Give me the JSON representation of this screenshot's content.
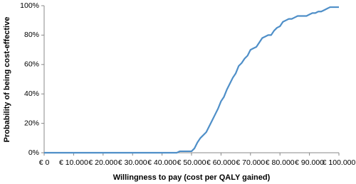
{
  "chart_data": {
    "type": "line",
    "x_label": "Willingness to pay (cost per QALY gained)",
    "y_label": "Probability of being cost-effective",
    "x": [
      0,
      45000,
      46000,
      50000,
      51000,
      52000,
      53000,
      54000,
      55000,
      56000,
      57000,
      58000,
      59000,
      60000,
      61000,
      62000,
      63000,
      64000,
      65000,
      66000,
      67000,
      68000,
      69000,
      70000,
      71000,
      72000,
      73000,
      74000,
      75000,
      76000,
      77000,
      78000,
      79000,
      80000,
      81000,
      82000,
      83000,
      84000,
      85000,
      86000,
      87000,
      88000,
      89000,
      90000,
      91000,
      92000,
      93000,
      94000,
      95000,
      96000,
      97000,
      98000,
      99000,
      100000
    ],
    "values": [
      0,
      0,
      1,
      1,
      3,
      7,
      10,
      12,
      14,
      18,
      22,
      26,
      30,
      35,
      38,
      43,
      47,
      51,
      54,
      59,
      61,
      64,
      66,
      70,
      71,
      72,
      75,
      78,
      79,
      80,
      80,
      83,
      85,
      86,
      89,
      90,
      91,
      91,
      92,
      93,
      93,
      93,
      93,
      94,
      95,
      95,
      96,
      96,
      97,
      98,
      99,
      99,
      99,
      99
    ],
    "color": "#4f8fc8",
    "xlim": [
      0,
      100000
    ],
    "xticks": [
      {
        "value": 0,
        "label": "€ 0"
      },
      {
        "value": 10000,
        "label": "€ 10.000"
      },
      {
        "value": 20000,
        "label": "€ 20.000"
      },
      {
        "value": 30000,
        "label": "€ 30.000"
      },
      {
        "value": 40000,
        "label": "€ 40.000"
      },
      {
        "value": 50000,
        "label": "€ 50.000"
      },
      {
        "value": 60000,
        "label": "€ 60.000"
      },
      {
        "value": 70000,
        "label": "€ 70.000"
      },
      {
        "value": 80000,
        "label": "€ 80.000"
      },
      {
        "value": 90000,
        "label": "€ 90.000"
      },
      {
        "value": 100000,
        "label": "€ 100.000"
      }
    ],
    "ylim": [
      0,
      100
    ],
    "yticks": [
      {
        "value": 0,
        "label": "0%"
      },
      {
        "value": 20,
        "label": "20%"
      },
      {
        "value": 40,
        "label": "40%"
      },
      {
        "value": 60,
        "label": "60%"
      },
      {
        "value": 80,
        "label": "80%"
      },
      {
        "value": 100,
        "label": "100%"
      }
    ],
    "grid": false
  }
}
